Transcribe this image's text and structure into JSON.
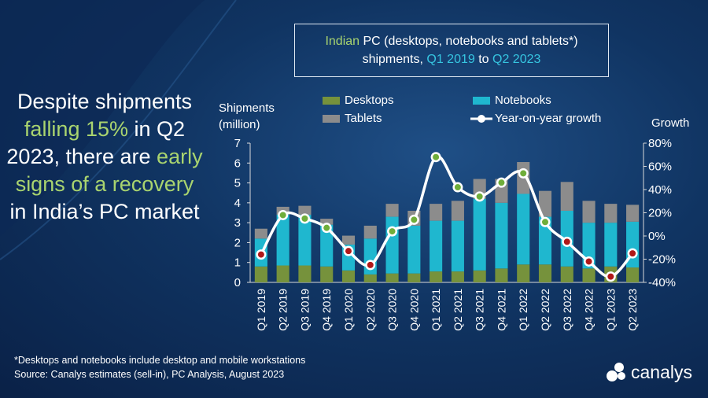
{
  "headline": {
    "p1": "Despite shipments ",
    "h1": "falling 15%",
    "p2": " in Q2 2023, there are ",
    "h2": "early signs of a recovery",
    "p3": " in India’s PC market"
  },
  "title": {
    "accent": "Indian",
    "line1": " PC (desktops, notebooks and tablets*)",
    "line2a": "shipments, ",
    "q_from": "Q1 2019",
    "to": " to ",
    "q_to": "Q2 2023"
  },
  "axis": {
    "left_label_1": "Shipments",
    "left_label_2": "(million)",
    "right_label": "Growth"
  },
  "legend": {
    "desktops": "Desktops",
    "notebooks": "Notebooks",
    "tablets": "Tablets",
    "growth": "Year-on-year growth"
  },
  "colors": {
    "desktops": "#76923c",
    "notebooks": "#1fb7cf",
    "tablets": "#8c8c8c",
    "growth_line": "#ffffff",
    "dot_positive": "#6fae3a",
    "dot_negative": "#b01818",
    "highlight": "#a9d46f",
    "quarter": "#36c5e0"
  },
  "footnote": {
    "line1": "*Desktops and notebooks  include desktop and mobile workstations",
    "line2": "Source:  Canalys estimates (sell-in), PC Analysis, August 2023"
  },
  "brand": {
    "name": "canalys"
  },
  "chart_data": {
    "type": "bar",
    "stacked": true,
    "categories": [
      "Q1 2019",
      "Q2 2019",
      "Q3 2019",
      "Q4 2019",
      "Q1 2020",
      "Q2 2020",
      "Q3 2020",
      "Q4 2020",
      "Q1 2021",
      "Q2 2021",
      "Q3 2021",
      "Q4 2021",
      "Q1 2022",
      "Q2 2022",
      "Q3 2022",
      "Q4 2022",
      "Q1 2023",
      "Q2 2023"
    ],
    "series": [
      {
        "name": "Desktops",
        "values": [
          0.8,
          0.85,
          0.85,
          0.8,
          0.6,
          0.4,
          0.45,
          0.45,
          0.55,
          0.55,
          0.6,
          0.7,
          0.9,
          0.9,
          0.8,
          0.7,
          0.8,
          0.75
        ]
      },
      {
        "name": "Notebooks",
        "values": [
          1.4,
          2.55,
          2.55,
          2.1,
          1.3,
          1.8,
          2.85,
          2.4,
          2.55,
          2.55,
          3.6,
          3.3,
          3.55,
          2.4,
          2.8,
          2.3,
          2.2,
          2.3
        ]
      },
      {
        "name": "Tablets",
        "values": [
          0.5,
          0.4,
          0.45,
          0.3,
          0.45,
          0.65,
          0.65,
          0.75,
          0.85,
          1.0,
          1.0,
          1.2,
          1.6,
          1.3,
          1.45,
          1.1,
          0.95,
          0.85
        ]
      }
    ],
    "line_series": {
      "name": "Year-on-year growth",
      "axis": "right",
      "values": [
        -16,
        18,
        15,
        7,
        -13,
        -25,
        4,
        14,
        68,
        42,
        34,
        46,
        54,
        12,
        -5,
        -22,
        -35,
        -15
      ]
    },
    "ylim": [
      0,
      7
    ],
    "yticks": [
      0,
      1,
      2,
      3,
      4,
      5,
      6,
      7
    ],
    "y2lim": [
      -40,
      80
    ],
    "y2ticks": [
      "-40%",
      "-20%",
      "0%",
      "20%",
      "40%",
      "60%",
      "80%"
    ],
    "ylabel": "Shipments (million)",
    "y2label": "Growth",
    "legend_position": "top"
  }
}
